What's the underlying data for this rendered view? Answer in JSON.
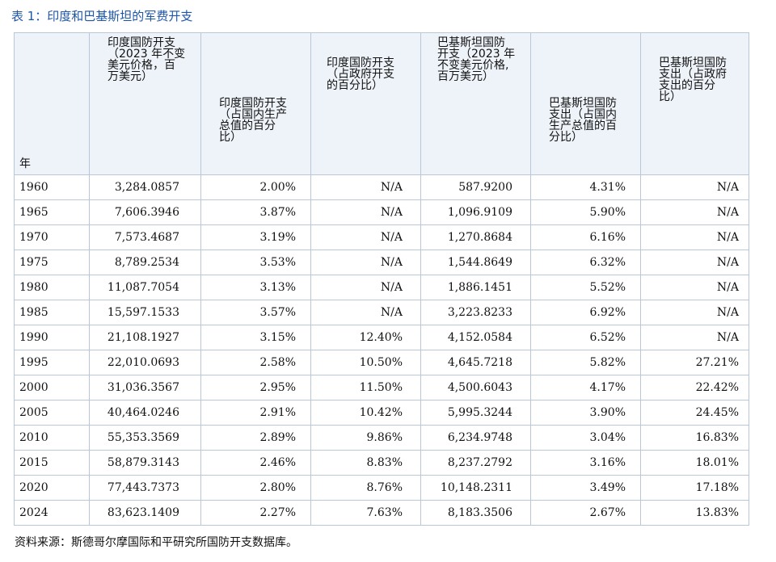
{
  "title": "表 1：印度和巴基斯坦的军费开支",
  "headers": {
    "year": "年",
    "india_spend": [
      "印度国防开支",
      "（2023 年不变",
      "美元价格，百",
      "万美元）"
    ],
    "india_gdp": [
      "印度国防开支",
      "（占国内生产",
      "总值的百分",
      "比）"
    ],
    "india_gov": [
      "印度国防开支",
      "（占政府开支",
      "的百分比）"
    ],
    "pak_spend": [
      "巴基斯坦国防",
      "开支（2023 年",
      "不变美元价格,",
      "百万美元）"
    ],
    "pak_gdp": [
      "巴基斯坦国防",
      "支出（占国内",
      "生产总值的百",
      "分比）"
    ],
    "pak_gov": [
      "巴基斯坦国防",
      "支出（占政府",
      "支出的百分",
      "比）"
    ]
  },
  "rows": [
    [
      "1960",
      "3,284.0857",
      "2.00%",
      "N/A",
      "587.9200",
      "4.31%",
      "N/A"
    ],
    [
      "1965",
      "7,606.3946",
      "3.87%",
      "N/A",
      "1,096.9109",
      "5.90%",
      "N/A"
    ],
    [
      "1970",
      "7,573.4687",
      "3.19%",
      "N/A",
      "1,270.8684",
      "6.16%",
      "N/A"
    ],
    [
      "1975",
      "8,789.2534",
      "3.53%",
      "N/A",
      "1,544.8649",
      "6.32%",
      "N/A"
    ],
    [
      "1980",
      "11,087.7054",
      "3.13%",
      "N/A",
      "1,886.1451",
      "5.52%",
      "N/A"
    ],
    [
      "1985",
      "15,597.1533",
      "3.57%",
      "N/A",
      "3,223.8233",
      "6.92%",
      "N/A"
    ],
    [
      "1990",
      "21,108.1927",
      "3.15%",
      "12.40%",
      "4,152.0584",
      "6.52%",
      "N/A"
    ],
    [
      "1995",
      "22,010.0693",
      "2.58%",
      "10.50%",
      "4,645.7218",
      "5.82%",
      "27.21%"
    ],
    [
      "2000",
      "31,036.3567",
      "2.95%",
      "11.50%",
      "4,500.6043",
      "4.17%",
      "22.42%"
    ],
    [
      "2005",
      "40,464.0246",
      "2.91%",
      "10.42%",
      "5,995.3244",
      "3.90%",
      "24.45%"
    ],
    [
      "2010",
      "55,353.3569",
      "2.89%",
      "9.86%",
      "6,234.9748",
      "3.04%",
      "16.83%"
    ],
    [
      "2015",
      "58,879.3143",
      "2.46%",
      "8.83%",
      "8,237.2792",
      "3.16%",
      "18.01%"
    ],
    [
      "2020",
      "77,443.7373",
      "2.80%",
      "8.76%",
      "10,148.2311",
      "3.49%",
      "17.18%"
    ],
    [
      "2024",
      "83,623.1409",
      "2.27%",
      "7.63%",
      "8,183.3506",
      "2.67%",
      "13.83%"
    ]
  ],
  "source": "资料来源：斯德哥尔摩国际和平研究所国防开支数据库。"
}
